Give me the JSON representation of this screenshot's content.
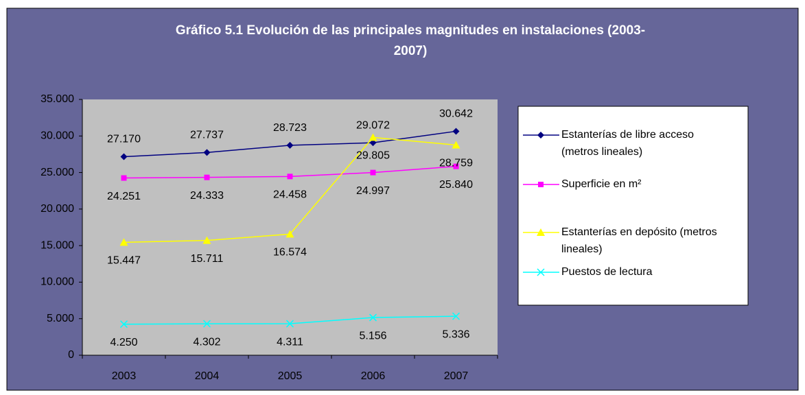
{
  "chart_data": {
    "type": "line",
    "title": "Gráfico 5.1 Evolución de las principales magnitudes en instalaciones (2003-2007)",
    "categories": [
      "2003",
      "2004",
      "2005",
      "2006",
      "2007"
    ],
    "series": [
      {
        "name": "Estanterías de libre acceso (metros lineales)",
        "color": "#000080",
        "marker": "diamond",
        "values": [
          27170,
          27737,
          28723,
          29072,
          30642
        ],
        "value_labels": [
          "27.170",
          "27.737",
          "28.723",
          "29.072",
          "30.642"
        ]
      },
      {
        "name": "Superficie en m²",
        "color": "#ff00ff",
        "marker": "square",
        "values": [
          24251,
          24333,
          24458,
          24997,
          25840
        ],
        "value_labels": [
          "24.251",
          "24.333",
          "24.458",
          "24.997",
          "25.840"
        ]
      },
      {
        "name": "Estanterías en depósito (metros lineales)",
        "color": "#ffff00",
        "marker": "triangle",
        "values": [
          15447,
          15711,
          16574,
          29805,
          28759
        ],
        "value_labels": [
          "15.447",
          "15.711",
          "16.574",
          "29.805",
          "28.759"
        ]
      },
      {
        "name": "Puestos de lectura",
        "color": "#00ffff",
        "marker": "x",
        "values": [
          4250,
          4302,
          4311,
          5156,
          5336
        ],
        "value_labels": [
          "4.250",
          "4.302",
          "4.311",
          "5.156",
          "5.336"
        ]
      }
    ],
    "ylim": [
      0,
      35000
    ],
    "yticks": [
      0,
      {
        "value": 5000,
        "label": "5.000"
      },
      {
        "value": 10000,
        "label": "10.000"
      },
      {
        "value": 15000,
        "label": "15.000"
      },
      {
        "value": 20000,
        "label": "20.000"
      },
      {
        "value": 25000,
        "label": "25.000"
      },
      {
        "value": 30000,
        "label": "30.000"
      },
      {
        "value": 35000,
        "label": "35.000"
      }
    ],
    "legend": "right"
  }
}
